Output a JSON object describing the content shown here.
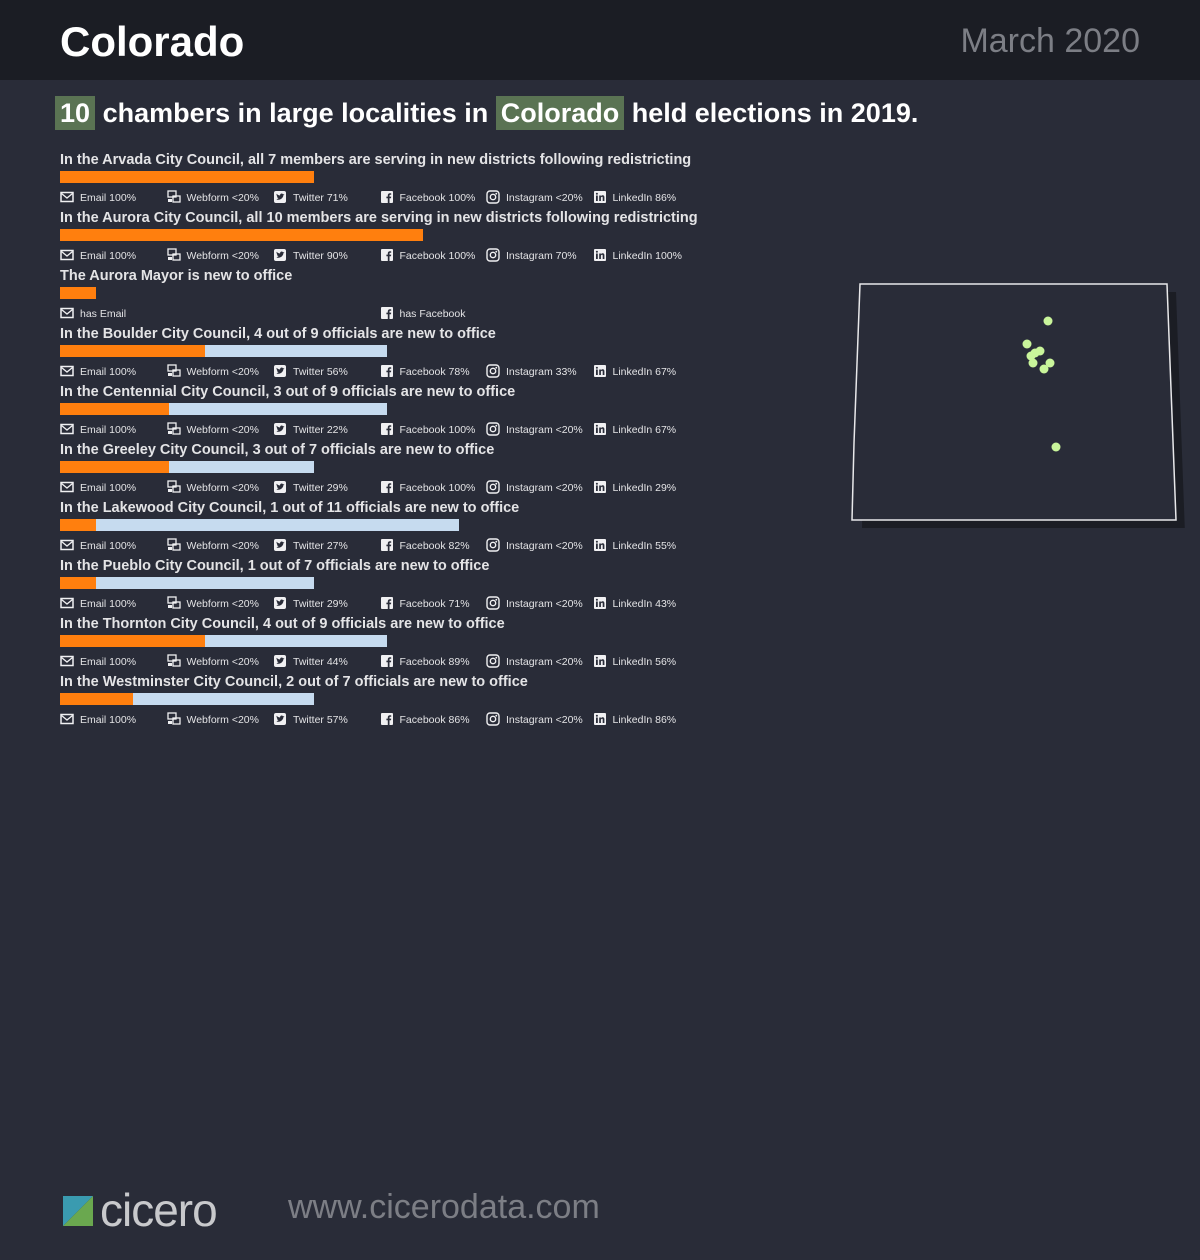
{
  "header": {
    "title": "Colorado",
    "date": "March 2020"
  },
  "headline": {
    "count": "10",
    "text1": "chambers in large localities in",
    "state": "Colorado",
    "text2": "held elections in 2019."
  },
  "chart_data": {
    "type": "bar",
    "bar_scale_note": "bar length proportional to chamber size; orange = new to office, light blue = returning",
    "colors": {
      "new": "#ff7f0e",
      "returning": "#c6dbef",
      "highlight": "#5a7353",
      "map_dot": "#c9f59b"
    },
    "chambers": [
      {
        "title": "In the Arvada City Council, all 7 members are serving in new districts following redistricting",
        "new": 7,
        "total": 7,
        "stats": [
          {
            "icon": "email-icon",
            "label": "Email 100%"
          },
          {
            "icon": "webform-icon",
            "label": "Webform <20%"
          },
          {
            "icon": "twitter-icon",
            "label": "Twitter 71%"
          },
          {
            "icon": "facebook-icon",
            "label": "Facebook 100%"
          },
          {
            "icon": "instagram-icon",
            "label": "Instagram <20%"
          },
          {
            "icon": "linkedin-icon",
            "label": "LinkedIn 86%"
          }
        ]
      },
      {
        "title": "In the Aurora City Council, all 10 members are serving in new districts following redistricting",
        "new": 10,
        "total": 10,
        "stats": [
          {
            "icon": "email-icon",
            "label": "Email 100%"
          },
          {
            "icon": "webform-icon",
            "label": "Webform <20%"
          },
          {
            "icon": "twitter-icon",
            "label": "Twitter 90%"
          },
          {
            "icon": "facebook-icon",
            "label": "Facebook 100%"
          },
          {
            "icon": "instagram-icon",
            "label": "Instagram 70%"
          },
          {
            "icon": "linkedin-icon",
            "label": "LinkedIn 100%"
          }
        ]
      },
      {
        "title": "The Aurora Mayor is new to office",
        "new": 1,
        "total": 1,
        "stats": [
          {
            "icon": "email-icon",
            "label": "has Email",
            "slot": 0
          },
          {
            "icon": "facebook-icon",
            "label": "has Facebook",
            "slot": 3
          }
        ]
      },
      {
        "title": "In the Boulder City Council, 4 out of 9 officials are new to office",
        "new": 4,
        "total": 9,
        "stats": [
          {
            "icon": "email-icon",
            "label": "Email 100%"
          },
          {
            "icon": "webform-icon",
            "label": "Webform <20%"
          },
          {
            "icon": "twitter-icon",
            "label": "Twitter 56%"
          },
          {
            "icon": "facebook-icon",
            "label": "Facebook 78%"
          },
          {
            "icon": "instagram-icon",
            "label": "Instagram 33%"
          },
          {
            "icon": "linkedin-icon",
            "label": "LinkedIn 67%"
          }
        ]
      },
      {
        "title": "In the Centennial City Council, 3 out of 9 officials are new to office",
        "new": 3,
        "total": 9,
        "stats": [
          {
            "icon": "email-icon",
            "label": "Email 100%"
          },
          {
            "icon": "webform-icon",
            "label": "Webform <20%"
          },
          {
            "icon": "twitter-icon",
            "label": "Twitter 22%"
          },
          {
            "icon": "facebook-icon",
            "label": "Facebook 100%"
          },
          {
            "icon": "instagram-icon",
            "label": "Instagram <20%"
          },
          {
            "icon": "linkedin-icon",
            "label": "LinkedIn 67%"
          }
        ]
      },
      {
        "title": "In the Greeley City Council, 3 out of 7 officials are new to office",
        "new": 3,
        "total": 7,
        "stats": [
          {
            "icon": "email-icon",
            "label": "Email 100%"
          },
          {
            "icon": "webform-icon",
            "label": "Webform <20%"
          },
          {
            "icon": "twitter-icon",
            "label": "Twitter 29%"
          },
          {
            "icon": "facebook-icon",
            "label": "Facebook 100%"
          },
          {
            "icon": "instagram-icon",
            "label": "Instagram <20%"
          },
          {
            "icon": "linkedin-icon",
            "label": "LinkedIn 29%"
          }
        ]
      },
      {
        "title": "In the Lakewood City Council, 1 out of 11 officials are new to office",
        "new": 1,
        "total": 11,
        "stats": [
          {
            "icon": "email-icon",
            "label": "Email 100%"
          },
          {
            "icon": "webform-icon",
            "label": "Webform <20%"
          },
          {
            "icon": "twitter-icon",
            "label": "Twitter 27%"
          },
          {
            "icon": "facebook-icon",
            "label": "Facebook 82%"
          },
          {
            "icon": "instagram-icon",
            "label": "Instagram <20%"
          },
          {
            "icon": "linkedin-icon",
            "label": "LinkedIn 55%"
          }
        ]
      },
      {
        "title": "In the Pueblo City Council, 1 out of 7 officials are new to office",
        "new": 1,
        "total": 7,
        "stats": [
          {
            "icon": "email-icon",
            "label": "Email 100%"
          },
          {
            "icon": "webform-icon",
            "label": "Webform <20%"
          },
          {
            "icon": "twitter-icon",
            "label": "Twitter 29%"
          },
          {
            "icon": "facebook-icon",
            "label": "Facebook 71%"
          },
          {
            "icon": "instagram-icon",
            "label": "Instagram <20%"
          },
          {
            "icon": "linkedin-icon",
            "label": "LinkedIn 43%"
          }
        ]
      },
      {
        "title": "In the Thornton City Council, 4 out of 9 officials are new to office",
        "new": 4,
        "total": 9,
        "stats": [
          {
            "icon": "email-icon",
            "label": "Email 100%"
          },
          {
            "icon": "webform-icon",
            "label": "Webform <20%"
          },
          {
            "icon": "twitter-icon",
            "label": "Twitter 44%"
          },
          {
            "icon": "facebook-icon",
            "label": "Facebook 89%"
          },
          {
            "icon": "instagram-icon",
            "label": "Instagram <20%"
          },
          {
            "icon": "linkedin-icon",
            "label": "LinkedIn 56%"
          }
        ]
      },
      {
        "title": "In the Westminster City Council, 2 out of 7 officials are new to office",
        "new": 2,
        "total": 7,
        "stats": [
          {
            "icon": "email-icon",
            "label": "Email 100%"
          },
          {
            "icon": "webform-icon",
            "label": "Webform <20%"
          },
          {
            "icon": "twitter-icon",
            "label": "Twitter 57%"
          },
          {
            "icon": "facebook-icon",
            "label": "Facebook 86%"
          },
          {
            "icon": "instagram-icon",
            "label": "Instagram <20%"
          },
          {
            "icon": "linkedin-icon",
            "label": "LinkedIn 86%"
          }
        ]
      }
    ]
  },
  "footer": {
    "logo_text": "cicero",
    "url": "www.cicerodata.com"
  }
}
